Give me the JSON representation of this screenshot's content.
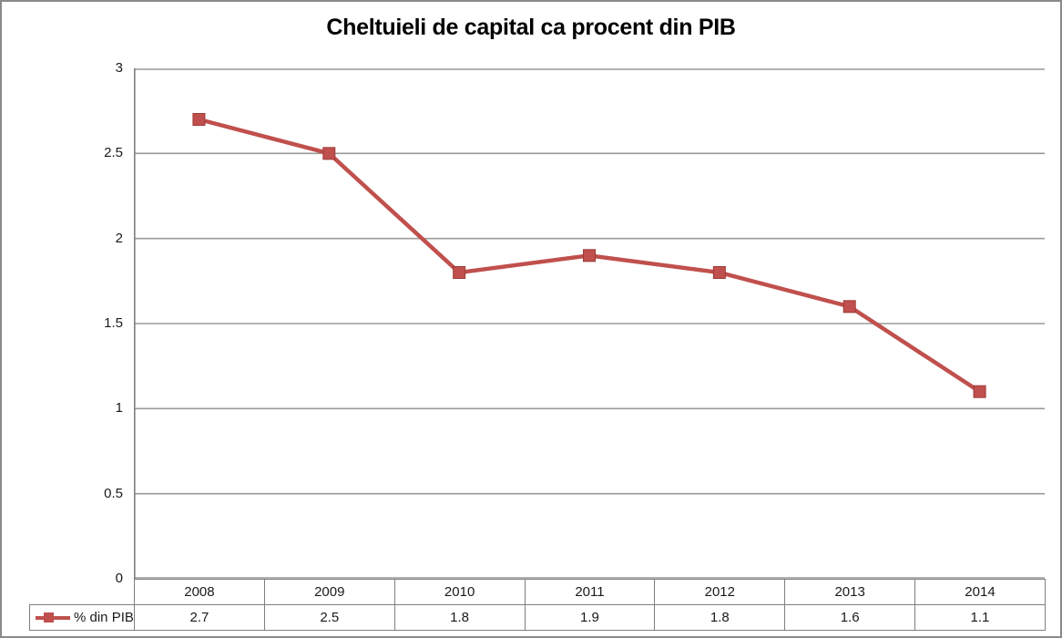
{
  "title": "Cheltuieli de capital ca procent din PIB",
  "chart_data": {
    "type": "line",
    "title": "Cheltuieli de capital ca procent din PIB",
    "categories": [
      "2008",
      "2009",
      "2010",
      "2011",
      "2012",
      "2013",
      "2014"
    ],
    "series": [
      {
        "name": "% din PIB",
        "values": [
          2.7,
          2.5,
          1.8,
          1.9,
          1.8,
          1.6,
          1.1
        ]
      }
    ],
    "xlabel": "",
    "ylabel": "",
    "ylim": [
      0,
      3
    ],
    "yticks": [
      3,
      2.5,
      2,
      1.5,
      1,
      0.5,
      0
    ],
    "ytick_labels": [
      "3",
      "2.5",
      "2",
      "1.5",
      "1",
      "0.5",
      "0"
    ],
    "grid": true,
    "legend_position": "bottom-table",
    "marker": "square"
  },
  "value_labels": [
    "2.7",
    "2.5",
    "1.8",
    "1.9",
    "1.8",
    "1.6",
    "1.1"
  ],
  "colors": {
    "series": "#C0504D",
    "series_edge": "#9c3a36",
    "gridline": "#9a9a9a",
    "axis_line": "#7f7f7f",
    "table_border": "#7f7f7f",
    "outer_border": "#8a8a8a",
    "text": "#1a1a1a"
  }
}
